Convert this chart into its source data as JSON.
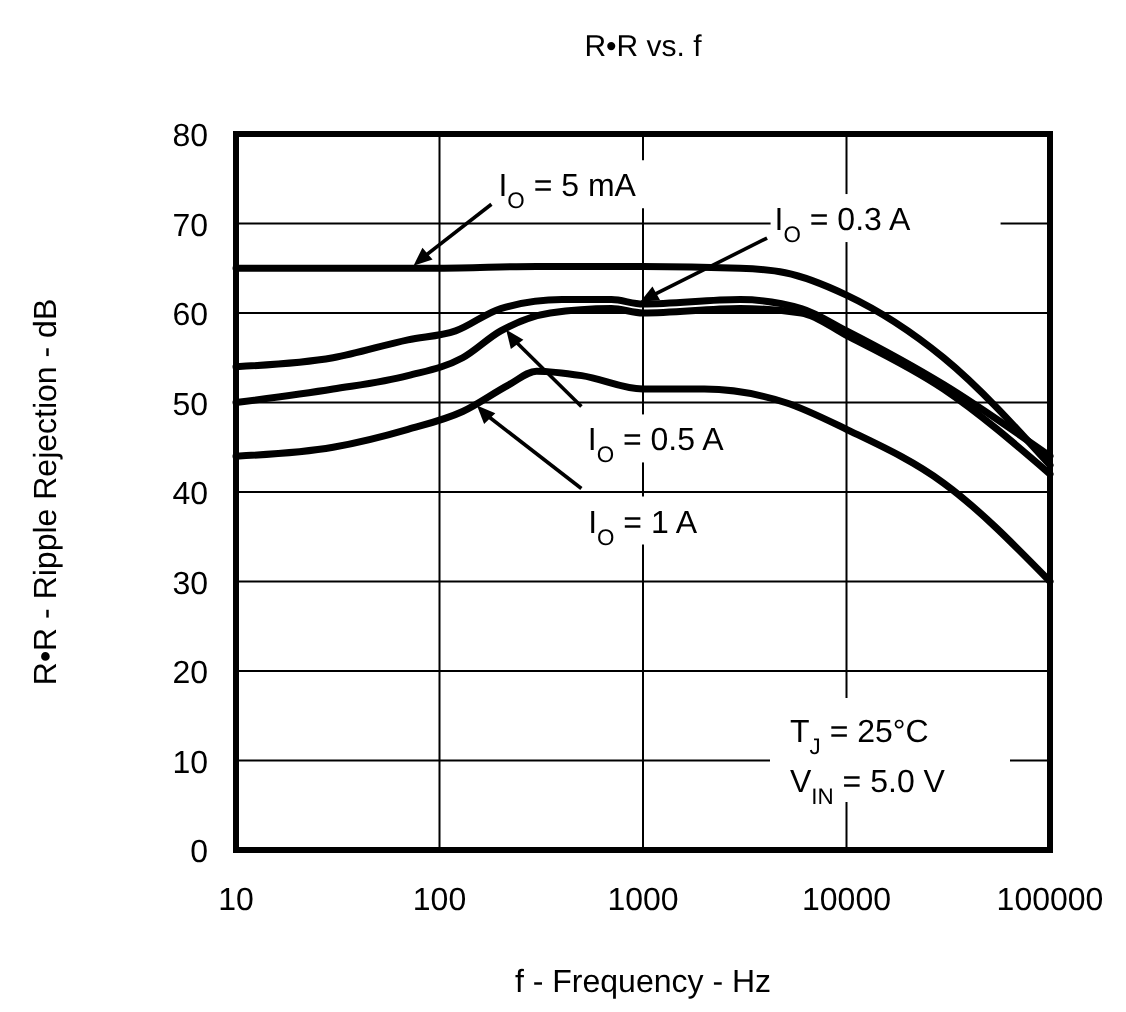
{
  "chart_data": {
    "type": "line",
    "title": "R•R vs. f",
    "xlabel": "f - Frequency - Hz",
    "ylabel": "R•R - Ripple Rejection - dB",
    "log": "x",
    "grid": true,
    "marker": "none",
    "line_style": "solid",
    "xlim": [
      10,
      100000
    ],
    "xticks": [
      10,
      100,
      1000,
      10000,
      100000
    ],
    "ylim": [
      0,
      80
    ],
    "yticks": [
      0,
      10,
      20,
      30,
      40,
      50,
      60,
      70,
      80
    ],
    "series": [
      {
        "color": "#000000",
        "x": [
          10,
          30,
          100,
          300,
          1000,
          3000,
          5000,
          10000,
          30000,
          100000
        ],
        "values": [
          65,
          65,
          65,
          65.2,
          65.2,
          65,
          64.5,
          62,
          55,
          43
        ]
      },
      {
        "color": "#000000",
        "x": [
          10,
          30,
          70,
          120,
          200,
          400,
          700,
          1000,
          3000,
          6000,
          10000,
          30000,
          100000
        ],
        "values": [
          54,
          55,
          57,
          58,
          60.5,
          61.5,
          61.5,
          61,
          61.5,
          60.5,
          58,
          52,
          44
        ]
      },
      {
        "color": "#000000",
        "x": [
          10,
          30,
          70,
          130,
          200,
          350,
          700,
          1000,
          3000,
          6000,
          10000,
          30000,
          100000
        ],
        "values": [
          50,
          51.5,
          53,
          55,
          58,
          60,
          60.5,
          60,
          60.5,
          60,
          57.5,
          51.5,
          42
        ]
      },
      {
        "color": "#000000",
        "x": [
          10,
          30,
          70,
          130,
          220,
          300,
          500,
          1000,
          2000,
          5000,
          10000,
          30000,
          100000
        ],
        "values": [
          44,
          45,
          47,
          49,
          52,
          53.5,
          53,
          51.5,
          51.5,
          50,
          47,
          41,
          30
        ]
      }
    ],
    "annotations": [
      {
        "text": "I$_{O}$ = 5 mA",
        "x": 72,
        "y": 65
      },
      {
        "text": "I$_{O}$ = 0.3 A",
        "x": 930,
        "y": 61
      },
      {
        "text": "I$_{O}$ = 0.5 A",
        "x": 207,
        "y": 58.5
      },
      {
        "text": "I$_{O}$ = 1 A",
        "x": 148,
        "y": 50
      },
      "T$_{J}$ = 25°C",
      "V$_{IN}$ = 5.0 V"
    ]
  }
}
